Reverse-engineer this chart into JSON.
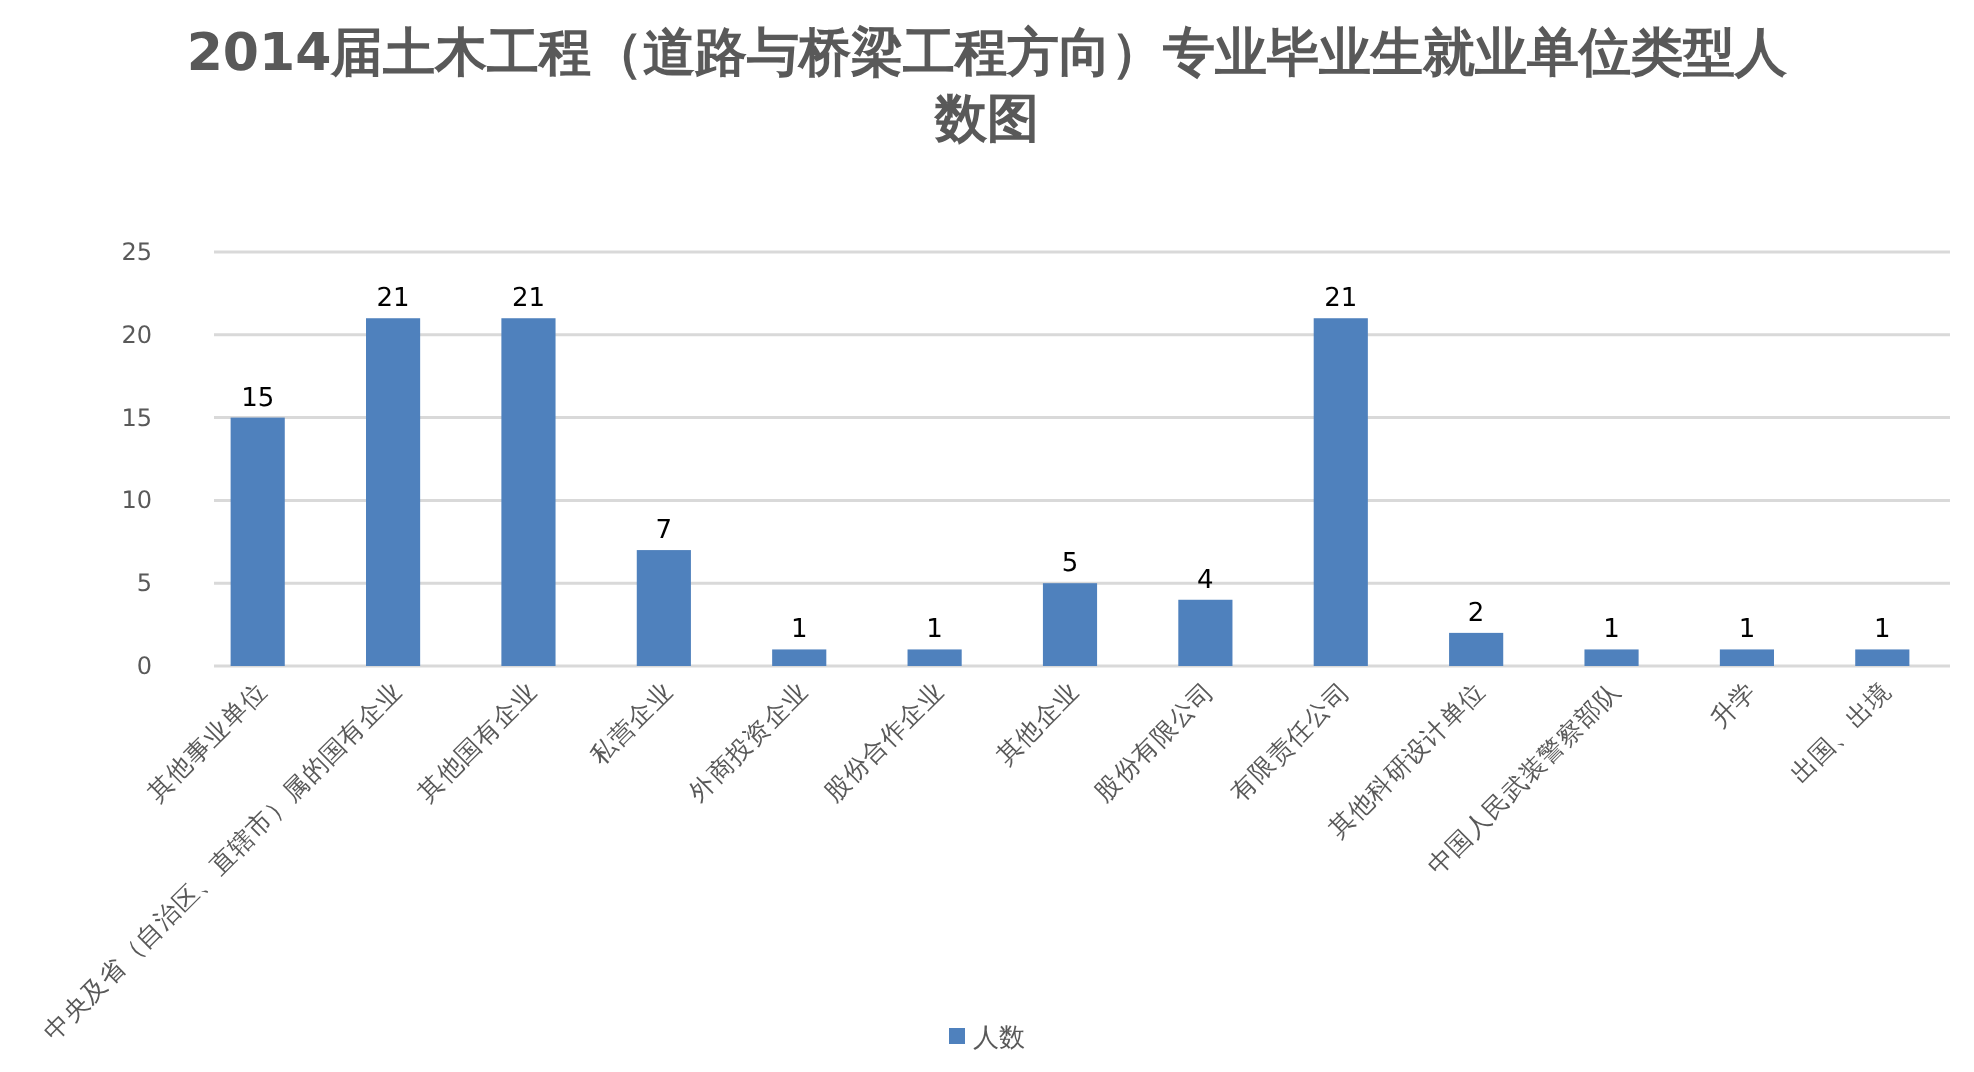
{
  "chart_data": {
    "type": "bar",
    "title": "2014届土木工程（道路与桥梁工程方向）专业毕业生就业单位类型人数图",
    "categories": [
      "其他事业单位",
      "中央及省（自治区、直辖市）属的国有企业",
      "其他国有企业",
      "私营企业",
      "外商投资企业",
      "股份合作企业",
      "其他企业",
      "股份有限公司",
      "有限责任公司",
      "其他科研设计单位",
      "中国人民武装警察部队",
      "升学",
      "出国、出境"
    ],
    "series": [
      {
        "name": "人数",
        "color": "#4f81bd",
        "values": [
          15,
          21,
          21,
          7,
          1,
          1,
          5,
          4,
          21,
          2,
          1,
          1,
          1
        ]
      }
    ],
    "ylim": [
      0,
      25
    ],
    "yticks": [
      0,
      5,
      10,
      15,
      20,
      25
    ],
    "grid": "y",
    "data_labels": true,
    "legend": "bottom"
  }
}
